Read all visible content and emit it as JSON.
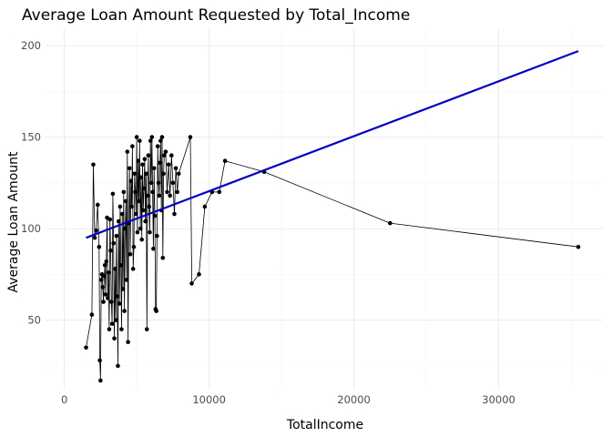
{
  "chart_data": {
    "type": "line",
    "title": "Average Loan Amount Requested by Total_Income",
    "xlabel": "TotalIncome",
    "ylabel": "Average Loan Amount",
    "xlim": [
      -1300,
      37200
    ],
    "ylim": [
      12,
      209
    ],
    "x_ticks": [
      0,
      10000,
      20000,
      30000
    ],
    "y_ticks": [
      50,
      100,
      150,
      200
    ],
    "x_tick_labels": [
      "0",
      "10000",
      "20000",
      "30000"
    ],
    "y_tick_labels": [
      "50",
      "100",
      "150",
      "200"
    ],
    "grid": true,
    "series": [
      {
        "style": "line+points",
        "color": "#000000",
        "points": [
          [
            1500,
            35
          ],
          [
            1900,
            53
          ],
          [
            2000,
            135
          ],
          [
            2100,
            95
          ],
          [
            2200,
            99
          ],
          [
            2300,
            113
          ],
          [
            2400,
            90
          ],
          [
            2450,
            28
          ],
          [
            2500,
            17
          ],
          [
            2550,
            72
          ],
          [
            2600,
            75
          ],
          [
            2650,
            68
          ],
          [
            2700,
            60
          ],
          [
            2750,
            74
          ],
          [
            2800,
            80
          ],
          [
            2850,
            64
          ],
          [
            2900,
            82
          ],
          [
            2950,
            106
          ],
          [
            3000,
            62
          ],
          [
            3050,
            76
          ],
          [
            3100,
            45
          ],
          [
            3150,
            105
          ],
          [
            3200,
            88
          ],
          [
            3250,
            60
          ],
          [
            3300,
            48
          ],
          [
            3350,
            119
          ],
          [
            3400,
            92
          ],
          [
            3450,
            40
          ],
          [
            3500,
            78
          ],
          [
            3550,
            50
          ],
          [
            3600,
            96
          ],
          [
            3650,
            63
          ],
          [
            3700,
            25
          ],
          [
            3750,
            104
          ],
          [
            3800,
            59
          ],
          [
            3850,
            112
          ],
          [
            3900,
            80
          ],
          [
            3950,
            45
          ],
          [
            4000,
            108
          ],
          [
            4050,
            67
          ],
          [
            4100,
            120
          ],
          [
            4150,
            55
          ],
          [
            4200,
            100
          ],
          [
            4250,
            115
          ],
          [
            4300,
            72
          ],
          [
            4350,
            142
          ],
          [
            4400,
            38
          ],
          [
            4450,
            103
          ],
          [
            4500,
            133
          ],
          [
            4550,
            86
          ],
          [
            4600,
            126
          ],
          [
            4650,
            112
          ],
          [
            4700,
            145
          ],
          [
            4750,
            78
          ],
          [
            4800,
            90
          ],
          [
            4850,
            130
          ],
          [
            4900,
            120
          ],
          [
            4950,
            108
          ],
          [
            5000,
            150
          ],
          [
            5050,
            98
          ],
          [
            5100,
            137
          ],
          [
            5150,
            115
          ],
          [
            5200,
            148
          ],
          [
            5250,
            100
          ],
          [
            5300,
            128
          ],
          [
            5350,
            94
          ],
          [
            5400,
            135
          ],
          [
            5450,
            110
          ],
          [
            5500,
            122
          ],
          [
            5550,
            138
          ],
          [
            5600,
            104
          ],
          [
            5650,
            130
          ],
          [
            5700,
            45
          ],
          [
            5750,
            118
          ],
          [
            5800,
            140
          ],
          [
            5850,
            112
          ],
          [
            5900,
            98
          ],
          [
            5950,
            148
          ],
          [
            6000,
            125
          ],
          [
            6050,
            150
          ],
          [
            6100,
            120
          ],
          [
            6150,
            89
          ],
          [
            6200,
            133
          ],
          [
            6250,
            107
          ],
          [
            6300,
            56
          ],
          [
            6350,
            55
          ],
          [
            6400,
            96
          ],
          [
            6450,
            145
          ],
          [
            6500,
            125
          ],
          [
            6550,
            118
          ],
          [
            6600,
            136
          ],
          [
            6650,
            148
          ],
          [
            6700,
            110
          ],
          [
            6750,
            150
          ],
          [
            6800,
            84
          ],
          [
            6850,
            130
          ],
          [
            6900,
            140
          ],
          [
            7000,
            142
          ],
          [
            7100,
            120
          ],
          [
            7200,
            135
          ],
          [
            7300,
            118
          ],
          [
            7400,
            140
          ],
          [
            7500,
            125
          ],
          [
            7600,
            108
          ],
          [
            7700,
            133
          ],
          [
            7800,
            120
          ],
          [
            7900,
            130
          ],
          [
            8700,
            150
          ],
          [
            8800,
            70
          ],
          [
            9300,
            75
          ],
          [
            9700,
            112
          ],
          [
            10200,
            120
          ],
          [
            10700,
            120
          ],
          [
            11100,
            137
          ],
          [
            13800,
            131
          ],
          [
            22500,
            103
          ],
          [
            35500,
            90
          ]
        ]
      },
      {
        "style": "line",
        "color": "#0000cc",
        "points": [
          [
            1500,
            95
          ],
          [
            35500,
            197
          ]
        ]
      }
    ]
  }
}
